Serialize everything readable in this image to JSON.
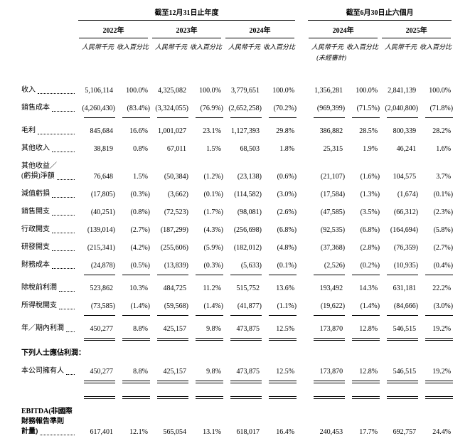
{
  "document": {
    "background": "#ffffff",
    "text_color": "#000000"
  },
  "table": {
    "header": {
      "group1": "截至12月31日止年度",
      "group2": "截至6月30日止六個月",
      "years": [
        "2022年",
        "2023年",
        "2024年",
        "2024年",
        "2025年"
      ],
      "amount_label": "人民幣千元",
      "percent_label": "收入百分比",
      "unaudited": "(未經審計)"
    },
    "rows": [
      {
        "label": [
          "收入"
        ],
        "leader": true,
        "rule": "none",
        "values": [
          "5,106,114",
          "100.0%",
          "4,325,082",
          "100.0%",
          "3,779,651",
          "100.0%",
          "1,356,281",
          "100.0%",
          "2,841,139",
          "100.0%"
        ]
      },
      {
        "label": [
          "銷售成本"
        ],
        "leader": true,
        "rule": "single",
        "values": [
          "(4,260,430)",
          "(83.4%)",
          "(3,324,055)",
          "(76.9%)",
          "(2,652,258)",
          "(70.2%)",
          "(969,399)",
          "(71.5%)",
          "(2,040,800)",
          "(71.8%)"
        ]
      },
      {
        "label": [
          "毛利"
        ],
        "leader": true,
        "rule": "none",
        "values": [
          "845,684",
          "16.6%",
          "1,001,027",
          "23.1%",
          "1,127,393",
          "29.8%",
          "386,882",
          "28.5%",
          "800,339",
          "28.2%"
        ]
      },
      {
        "label": [
          "其他收入"
        ],
        "leader": true,
        "rule": "none",
        "values": [
          "38,819",
          "0.8%",
          "67,011",
          "1.5%",
          "68,503",
          "1.8%",
          "25,315",
          "1.9%",
          "46,241",
          "1.6%"
        ]
      },
      {
        "label": [
          "其他收益／",
          "(虧損)淨額"
        ],
        "leader": true,
        "rule": "none",
        "values": [
          "76,648",
          "1.5%",
          "(50,384)",
          "(1.2%)",
          "(23,138)",
          "(0.6%)",
          "(21,107)",
          "(1.6%)",
          "104,575",
          "3.7%"
        ]
      },
      {
        "label": [
          "減值虧損"
        ],
        "leader": true,
        "rule": "none",
        "values": [
          "(17,805)",
          "(0.3%)",
          "(3,662)",
          "(0.1%)",
          "(114,582)",
          "(3.0%)",
          "(17,584)",
          "(1.3%)",
          "(1,674)",
          "(0.1%)"
        ]
      },
      {
        "label": [
          "銷售開支"
        ],
        "leader": true,
        "rule": "none",
        "values": [
          "(40,251)",
          "(0.8%)",
          "(72,523)",
          "(1.7%)",
          "(98,081)",
          "(2.6%)",
          "(47,585)",
          "(3.5%)",
          "(66,312)",
          "(2.3%)"
        ]
      },
      {
        "label": [
          "行政開支"
        ],
        "leader": true,
        "rule": "none",
        "values": [
          "(139,014)",
          "(2.7%)",
          "(187,299)",
          "(4.3%)",
          "(256,698)",
          "(6.8%)",
          "(92,535)",
          "(6.8%)",
          "(164,694)",
          "(5.8%)"
        ]
      },
      {
        "label": [
          "研發開支"
        ],
        "leader": true,
        "rule": "none",
        "values": [
          "(215,341)",
          "(4.2%)",
          "(255,606)",
          "(5.9%)",
          "(182,012)",
          "(4.8%)",
          "(37,368)",
          "(2.8%)",
          "(76,359)",
          "(2.7%)"
        ]
      },
      {
        "label": [
          "財務成本"
        ],
        "leader": true,
        "rule": "single",
        "values": [
          "(24,878)",
          "(0.5%)",
          "(13,839)",
          "(0.3%)",
          "(5,633)",
          "(0.1%)",
          "(2,526)",
          "(0.2%)",
          "(10,935)",
          "(0.4%)"
        ]
      },
      {
        "label": [
          "除稅前利潤"
        ],
        "leader": true,
        "rule": "none",
        "values": [
          "523,862",
          "10.3%",
          "484,725",
          "11.2%",
          "515,752",
          "13.6%",
          "193,492",
          "14.3%",
          "631,181",
          "22.2%"
        ]
      },
      {
        "label": [
          "所得稅開支"
        ],
        "leader": true,
        "rule": "single",
        "values": [
          "(73,585)",
          "(1.4%)",
          "(59,568)",
          "(1.4%)",
          "(41,877)",
          "(1.1%)",
          "(19,622)",
          "(1.4%)",
          "(84,666)",
          "(3.0%)"
        ]
      },
      {
        "label": [
          "年／期內利潤"
        ],
        "leader": true,
        "rule": "double",
        "values": [
          "450,277",
          "8.8%",
          "425,157",
          "9.8%",
          "473,875",
          "12.5%",
          "173,870",
          "12.8%",
          "546,515",
          "19.2%"
        ]
      },
      {
        "label": [
          "下列人士應佔利潤："
        ],
        "leader": false,
        "bold": true,
        "pad_top": true,
        "rule": "none",
        "values": [
          "",
          "",
          "",
          "",
          "",
          "",
          "",
          "",
          "",
          ""
        ]
      },
      {
        "label": [
          "本公司擁有人"
        ],
        "leader": true,
        "rule": "double",
        "values": [
          "450,277",
          "8.8%",
          "425,157",
          "9.8%",
          "473,875",
          "12.5%",
          "173,870",
          "12.8%",
          "546,515",
          "19.2%"
        ]
      },
      {
        "label": [
          ""
        ],
        "leader": false,
        "spacer": true,
        "rule": "double",
        "values": [
          "",
          "",
          "",
          "",
          "",
          "",
          "",
          "",
          "",
          ""
        ]
      },
      {
        "label": [
          "EBITDA(非國際",
          "財務報告準則",
          "計量)"
        ],
        "leader": true,
        "bold": true,
        "rule": "double",
        "values": [
          "617,401",
          "12.1%",
          "565,054",
          "13.1%",
          "618,017",
          "16.4%",
          "240,453",
          "17.7%",
          "692,757",
          "24.4%"
        ]
      }
    ]
  }
}
